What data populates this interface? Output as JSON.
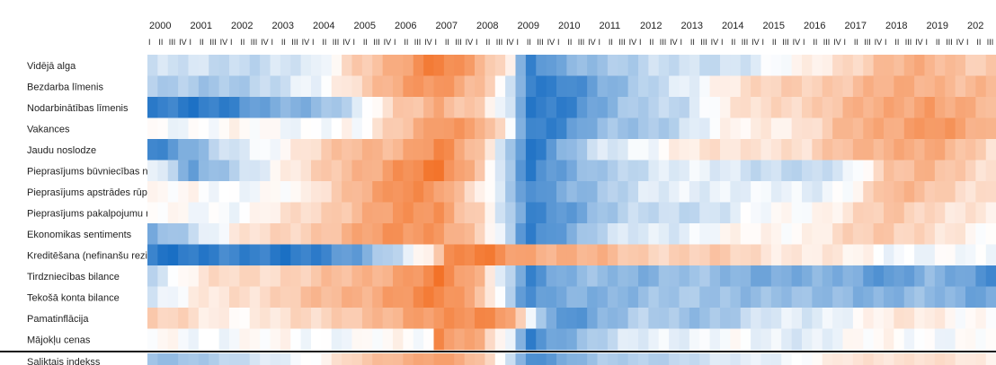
{
  "chart_data": {
    "type": "heatmap",
    "years": [
      "2000",
      "2001",
      "2002",
      "2003",
      "2004",
      "2005",
      "2006",
      "2007",
      "2008",
      "2009",
      "2010",
      "2011",
      "2012",
      "2013",
      "2014",
      "2015",
      "2016",
      "2017",
      "2018",
      "2019",
      "202"
    ],
    "quarter_ticks": "I II III IV",
    "rows": [
      "Vidējā alga",
      "Bezdarba līmenis",
      "Nodarbinātības līmenis",
      "Vakances",
      "Jaudu noslodze",
      "Pieprasījums būvniecības nozarē",
      "Pieprasījums apstrādes rūpniecības nozarē",
      "Pieprasījums pakalpojumu nozarēs",
      "Ekonomikas sentiments",
      "Kreditēšana (nefinanšu rezidenti)",
      "Tirdzniecības bilance",
      "Tekošā konta bilance",
      "Pamatinflācija",
      "Mājokļu cenas"
    ],
    "composite_row": "Saliktais indekss",
    "value_scale": "-1 (blue) to +1 (orange), 0 = white",
    "colors": {
      "negative": "#1a6fc4",
      "neutral": "#ffffff",
      "positive": "#f26b1d"
    },
    "anchors": [
      [
        [
          2000,
          -0.25
        ],
        [
          2004,
          -0.2
        ],
        [
          2005,
          0.4
        ],
        [
          2006,
          0.55
        ],
        [
          2007,
          0.85
        ],
        [
          2008,
          0.6
        ],
        [
          2008.75,
          0.1
        ],
        [
          2009.2,
          -0.95
        ],
        [
          2010,
          -0.6
        ],
        [
          2011,
          -0.35
        ],
        [
          2013,
          -0.25
        ],
        [
          2015,
          -0.1
        ],
        [
          2016,
          0.05
        ],
        [
          2017,
          0.3
        ],
        [
          2018,
          0.45
        ],
        [
          2019,
          0.5
        ],
        [
          2020.6,
          0.35
        ]
      ],
      [
        [
          2000,
          -0.4
        ],
        [
          2003,
          -0.3
        ],
        [
          2004,
          -0.05
        ],
        [
          2005,
          0.3
        ],
        [
          2006,
          0.55
        ],
        [
          2007,
          0.75
        ],
        [
          2008,
          0.5
        ],
        [
          2008.75,
          -0.2
        ],
        [
          2009.2,
          -0.95
        ],
        [
          2010,
          -0.85
        ],
        [
          2011,
          -0.55
        ],
        [
          2012,
          -0.4
        ],
        [
          2013,
          -0.1
        ],
        [
          2014,
          0.15
        ],
        [
          2016,
          0.35
        ],
        [
          2018,
          0.5
        ],
        [
          2019,
          0.55
        ],
        [
          2020.6,
          0.45
        ]
      ],
      [
        [
          2000,
          -0.9
        ],
        [
          2002,
          -0.85
        ],
        [
          2003,
          -0.6
        ],
        [
          2004,
          -0.45
        ],
        [
          2005,
          -0.2
        ],
        [
          2006,
          0.3
        ],
        [
          2007,
          0.6
        ],
        [
          2008,
          0.3
        ],
        [
          2008.75,
          -0.3
        ],
        [
          2009.2,
          -0.9
        ],
        [
          2010,
          -0.85
        ],
        [
          2011,
          -0.6
        ],
        [
          2012,
          -0.35
        ],
        [
          2013,
          -0.2
        ],
        [
          2014,
          0.1
        ],
        [
          2016,
          0.35
        ],
        [
          2018,
          0.55
        ],
        [
          2019,
          0.7
        ],
        [
          2020.6,
          0.4
        ]
      ],
      [
        [
          2000,
          0
        ],
        [
          2004.9,
          0
        ],
        [
          2005,
          -0.1
        ],
        [
          2006,
          0.4
        ],
        [
          2007,
          0.75
        ],
        [
          2008,
          0.55
        ],
        [
          2008.75,
          0
        ],
        [
          2009.2,
          -0.85
        ],
        [
          2010,
          -0.8
        ],
        [
          2011,
          -0.5
        ],
        [
          2012,
          -0.4
        ],
        [
          2013,
          -0.2
        ],
        [
          2014,
          0
        ],
        [
          2015,
          0.15
        ],
        [
          2016,
          0.2
        ],
        [
          2017,
          0.45
        ],
        [
          2018,
          0.6
        ],
        [
          2019,
          0.75
        ],
        [
          2020.6,
          0.4
        ]
      ],
      [
        [
          2000,
          -0.8
        ],
        [
          2001,
          -0.55
        ],
        [
          2002,
          -0.2
        ],
        [
          2003,
          0.05
        ],
        [
          2004,
          0.25
        ],
        [
          2005,
          0.45
        ],
        [
          2006,
          0.55
        ],
        [
          2007,
          0.8
        ],
        [
          2008,
          0.35
        ],
        [
          2008.75,
          -0.35
        ],
        [
          2009.2,
          -0.95
        ],
        [
          2010,
          -0.6
        ],
        [
          2011,
          -0.2
        ],
        [
          2012,
          0
        ],
        [
          2013,
          0.1
        ],
        [
          2015,
          0.25
        ],
        [
          2016,
          0.2
        ],
        [
          2017,
          0.45
        ],
        [
          2018,
          0.6
        ],
        [
          2019,
          0.55
        ],
        [
          2020.6,
          0.25
        ]
      ],
      [
        [
          2000,
          0
        ],
        [
          2001,
          -0.7
        ],
        [
          2002,
          -0.3
        ],
        [
          2003,
          0.05
        ],
        [
          2004,
          0.25
        ],
        [
          2005,
          0.5
        ],
        [
          2006,
          0.75
        ],
        [
          2007,
          0.85
        ],
        [
          2008,
          0.4
        ],
        [
          2008.75,
          -0.4
        ],
        [
          2009.2,
          -0.9
        ],
        [
          2010,
          -0.7
        ],
        [
          2011,
          -0.35
        ],
        [
          2012,
          -0.2
        ],
        [
          2014,
          -0.1
        ],
        [
          2016,
          -0.35
        ],
        [
          2017,
          -0.1
        ],
        [
          2018,
          0.4
        ],
        [
          2019,
          0.45
        ],
        [
          2020.6,
          0.25
        ]
      ],
      [
        [
          2000,
          0
        ],
        [
          2003.9,
          0
        ],
        [
          2004,
          0.15
        ],
        [
          2005,
          0.55
        ],
        [
          2006,
          0.75
        ],
        [
          2007,
          0.65
        ],
        [
          2008,
          0.2
        ],
        [
          2008.75,
          -0.35
        ],
        [
          2009.2,
          -0.9
        ],
        [
          2010,
          -0.6
        ],
        [
          2011,
          -0.35
        ],
        [
          2012,
          -0.2
        ],
        [
          2014,
          -0.05
        ],
        [
          2016,
          -0.15
        ],
        [
          2017,
          0.05
        ],
        [
          2018,
          0.45
        ],
        [
          2019,
          0.4
        ],
        [
          2020.6,
          0.2
        ]
      ],
      [
        [
          2000,
          0
        ],
        [
          2002.5,
          0
        ],
        [
          2003,
          0.1
        ],
        [
          2004,
          0.3
        ],
        [
          2005,
          0.5
        ],
        [
          2006,
          0.65
        ],
        [
          2007,
          0.75
        ],
        [
          2008,
          0.3
        ],
        [
          2008.75,
          -0.4
        ],
        [
          2009.2,
          -0.9
        ],
        [
          2010,
          -0.7
        ],
        [
          2011,
          -0.4
        ],
        [
          2012,
          -0.3
        ],
        [
          2014,
          -0.15
        ],
        [
          2016,
          0.05
        ],
        [
          2017,
          0.2
        ],
        [
          2018,
          0.35
        ],
        [
          2019,
          0.3
        ],
        [
          2020.6,
          0.1
        ]
      ],
      [
        [
          2000,
          -0.6
        ],
        [
          2001,
          -0.2
        ],
        [
          2002,
          0.1
        ],
        [
          2003,
          0.25
        ],
        [
          2004,
          0.4
        ],
        [
          2005,
          0.55
        ],
        [
          2006,
          0.7
        ],
        [
          2007,
          0.75
        ],
        [
          2008,
          0.3
        ],
        [
          2008.75,
          -0.4
        ],
        [
          2009.2,
          -0.9
        ],
        [
          2010,
          -0.6
        ],
        [
          2011,
          -0.3
        ],
        [
          2012,
          -0.15
        ],
        [
          2014,
          0
        ],
        [
          2016,
          0.1
        ],
        [
          2017,
          0.25
        ],
        [
          2018,
          0.35
        ],
        [
          2019,
          0.3
        ],
        [
          2020.6,
          -0.1
        ]
      ],
      [
        [
          2000,
          -0.9
        ],
        [
          2002,
          -0.9
        ],
        [
          2003,
          -0.9
        ],
        [
          2004,
          -0.85
        ],
        [
          2005,
          -0.7
        ],
        [
          2006,
          -0.2
        ],
        [
          2006.8,
          0.2
        ],
        [
          2007.2,
          0.7
        ],
        [
          2008,
          0.85
        ],
        [
          2009,
          0.65
        ],
        [
          2010,
          0.55
        ],
        [
          2011,
          0.45
        ],
        [
          2012,
          0.35
        ],
        [
          2014,
          0.3
        ],
        [
          2016,
          0.15
        ],
        [
          2018,
          0
        ],
        [
          2020.6,
          -0.1
        ]
      ],
      [
        [
          2000,
          -0.2
        ],
        [
          2001,
          0.1
        ],
        [
          2002,
          0.25
        ],
        [
          2003,
          0.3
        ],
        [
          2004,
          0.35
        ],
        [
          2005,
          0.45
        ],
        [
          2006,
          0.65
        ],
        [
          2007,
          0.85
        ],
        [
          2008,
          0.45
        ],
        [
          2008.75,
          -0.3
        ],
        [
          2009.2,
          -0.8
        ],
        [
          2010,
          -0.6
        ],
        [
          2011,
          -0.45
        ],
        [
          2012,
          -0.5
        ],
        [
          2013,
          -0.45
        ],
        [
          2014,
          -0.5
        ],
        [
          2016,
          -0.6
        ],
        [
          2017,
          -0.55
        ],
        [
          2018,
          -0.7
        ],
        [
          2019,
          -0.55
        ],
        [
          2020.6,
          -0.75
        ]
      ],
      [
        [
          2000,
          -0.2
        ],
        [
          2001,
          0.05
        ],
        [
          2002,
          0.25
        ],
        [
          2003,
          0.3
        ],
        [
          2004,
          0.4
        ],
        [
          2005,
          0.55
        ],
        [
          2006,
          0.7
        ],
        [
          2007,
          0.8
        ],
        [
          2008,
          0.5
        ],
        [
          2008.75,
          -0.3
        ],
        [
          2009.2,
          -0.85
        ],
        [
          2010,
          -0.6
        ],
        [
          2011,
          -0.5
        ],
        [
          2012,
          -0.45
        ],
        [
          2014,
          -0.4
        ],
        [
          2016,
          -0.5
        ],
        [
          2017,
          -0.45
        ],
        [
          2018,
          -0.55
        ],
        [
          2019,
          -0.5
        ],
        [
          2020.6,
          -0.6
        ]
      ],
      [
        [
          2000,
          0.3
        ],
        [
          2001,
          0.2
        ],
        [
          2002,
          0.1
        ],
        [
          2003,
          0.15
        ],
        [
          2004,
          0.25
        ],
        [
          2005,
          0.45
        ],
        [
          2006,
          0.5
        ],
        [
          2007,
          0.7
        ],
        [
          2008,
          0.85
        ],
        [
          2008.75,
          0.65
        ],
        [
          2009.2,
          -0.1
        ],
        [
          2010,
          -0.8
        ],
        [
          2011,
          -0.5
        ],
        [
          2012,
          -0.35
        ],
        [
          2013,
          -0.45
        ],
        [
          2014,
          -0.35
        ],
        [
          2015,
          -0.2
        ],
        [
          2016,
          -0.15
        ],
        [
          2017,
          0
        ],
        [
          2018,
          0.1
        ],
        [
          2019,
          0.15
        ],
        [
          2020.6,
          0
        ]
      ],
      [
        [
          2000,
          0
        ],
        [
          2006.8,
          0
        ],
        [
          2007,
          0.8
        ],
        [
          2008,
          0.55
        ],
        [
          2008.75,
          -0.2
        ],
        [
          2009.2,
          -0.9
        ],
        [
          2010,
          -0.55
        ],
        [
          2011,
          -0.3
        ],
        [
          2012,
          -0.15
        ],
        [
          2013,
          -0.05
        ],
        [
          2014,
          0
        ],
        [
          2015,
          -0.15
        ],
        [
          2016,
          -0.1
        ],
        [
          2017,
          0
        ],
        [
          2020.6,
          0
        ]
      ]
    ],
    "composite": [
      [
        2000,
        -0.45
      ],
      [
        2002,
        -0.3
      ],
      [
        2004,
        0.05
      ],
      [
        2005,
        0.3
      ],
      [
        2006,
        0.5
      ],
      [
        2007,
        0.7
      ],
      [
        2008,
        0.4
      ],
      [
        2008.75,
        -0.2
      ],
      [
        2009.2,
        -0.8
      ],
      [
        2010,
        -0.6
      ],
      [
        2011,
        -0.4
      ],
      [
        2013,
        -0.25
      ],
      [
        2015,
        -0.1
      ],
      [
        2017,
        0.15
      ],
      [
        2019,
        0.25
      ],
      [
        2020.6,
        0.05
      ]
    ]
  }
}
